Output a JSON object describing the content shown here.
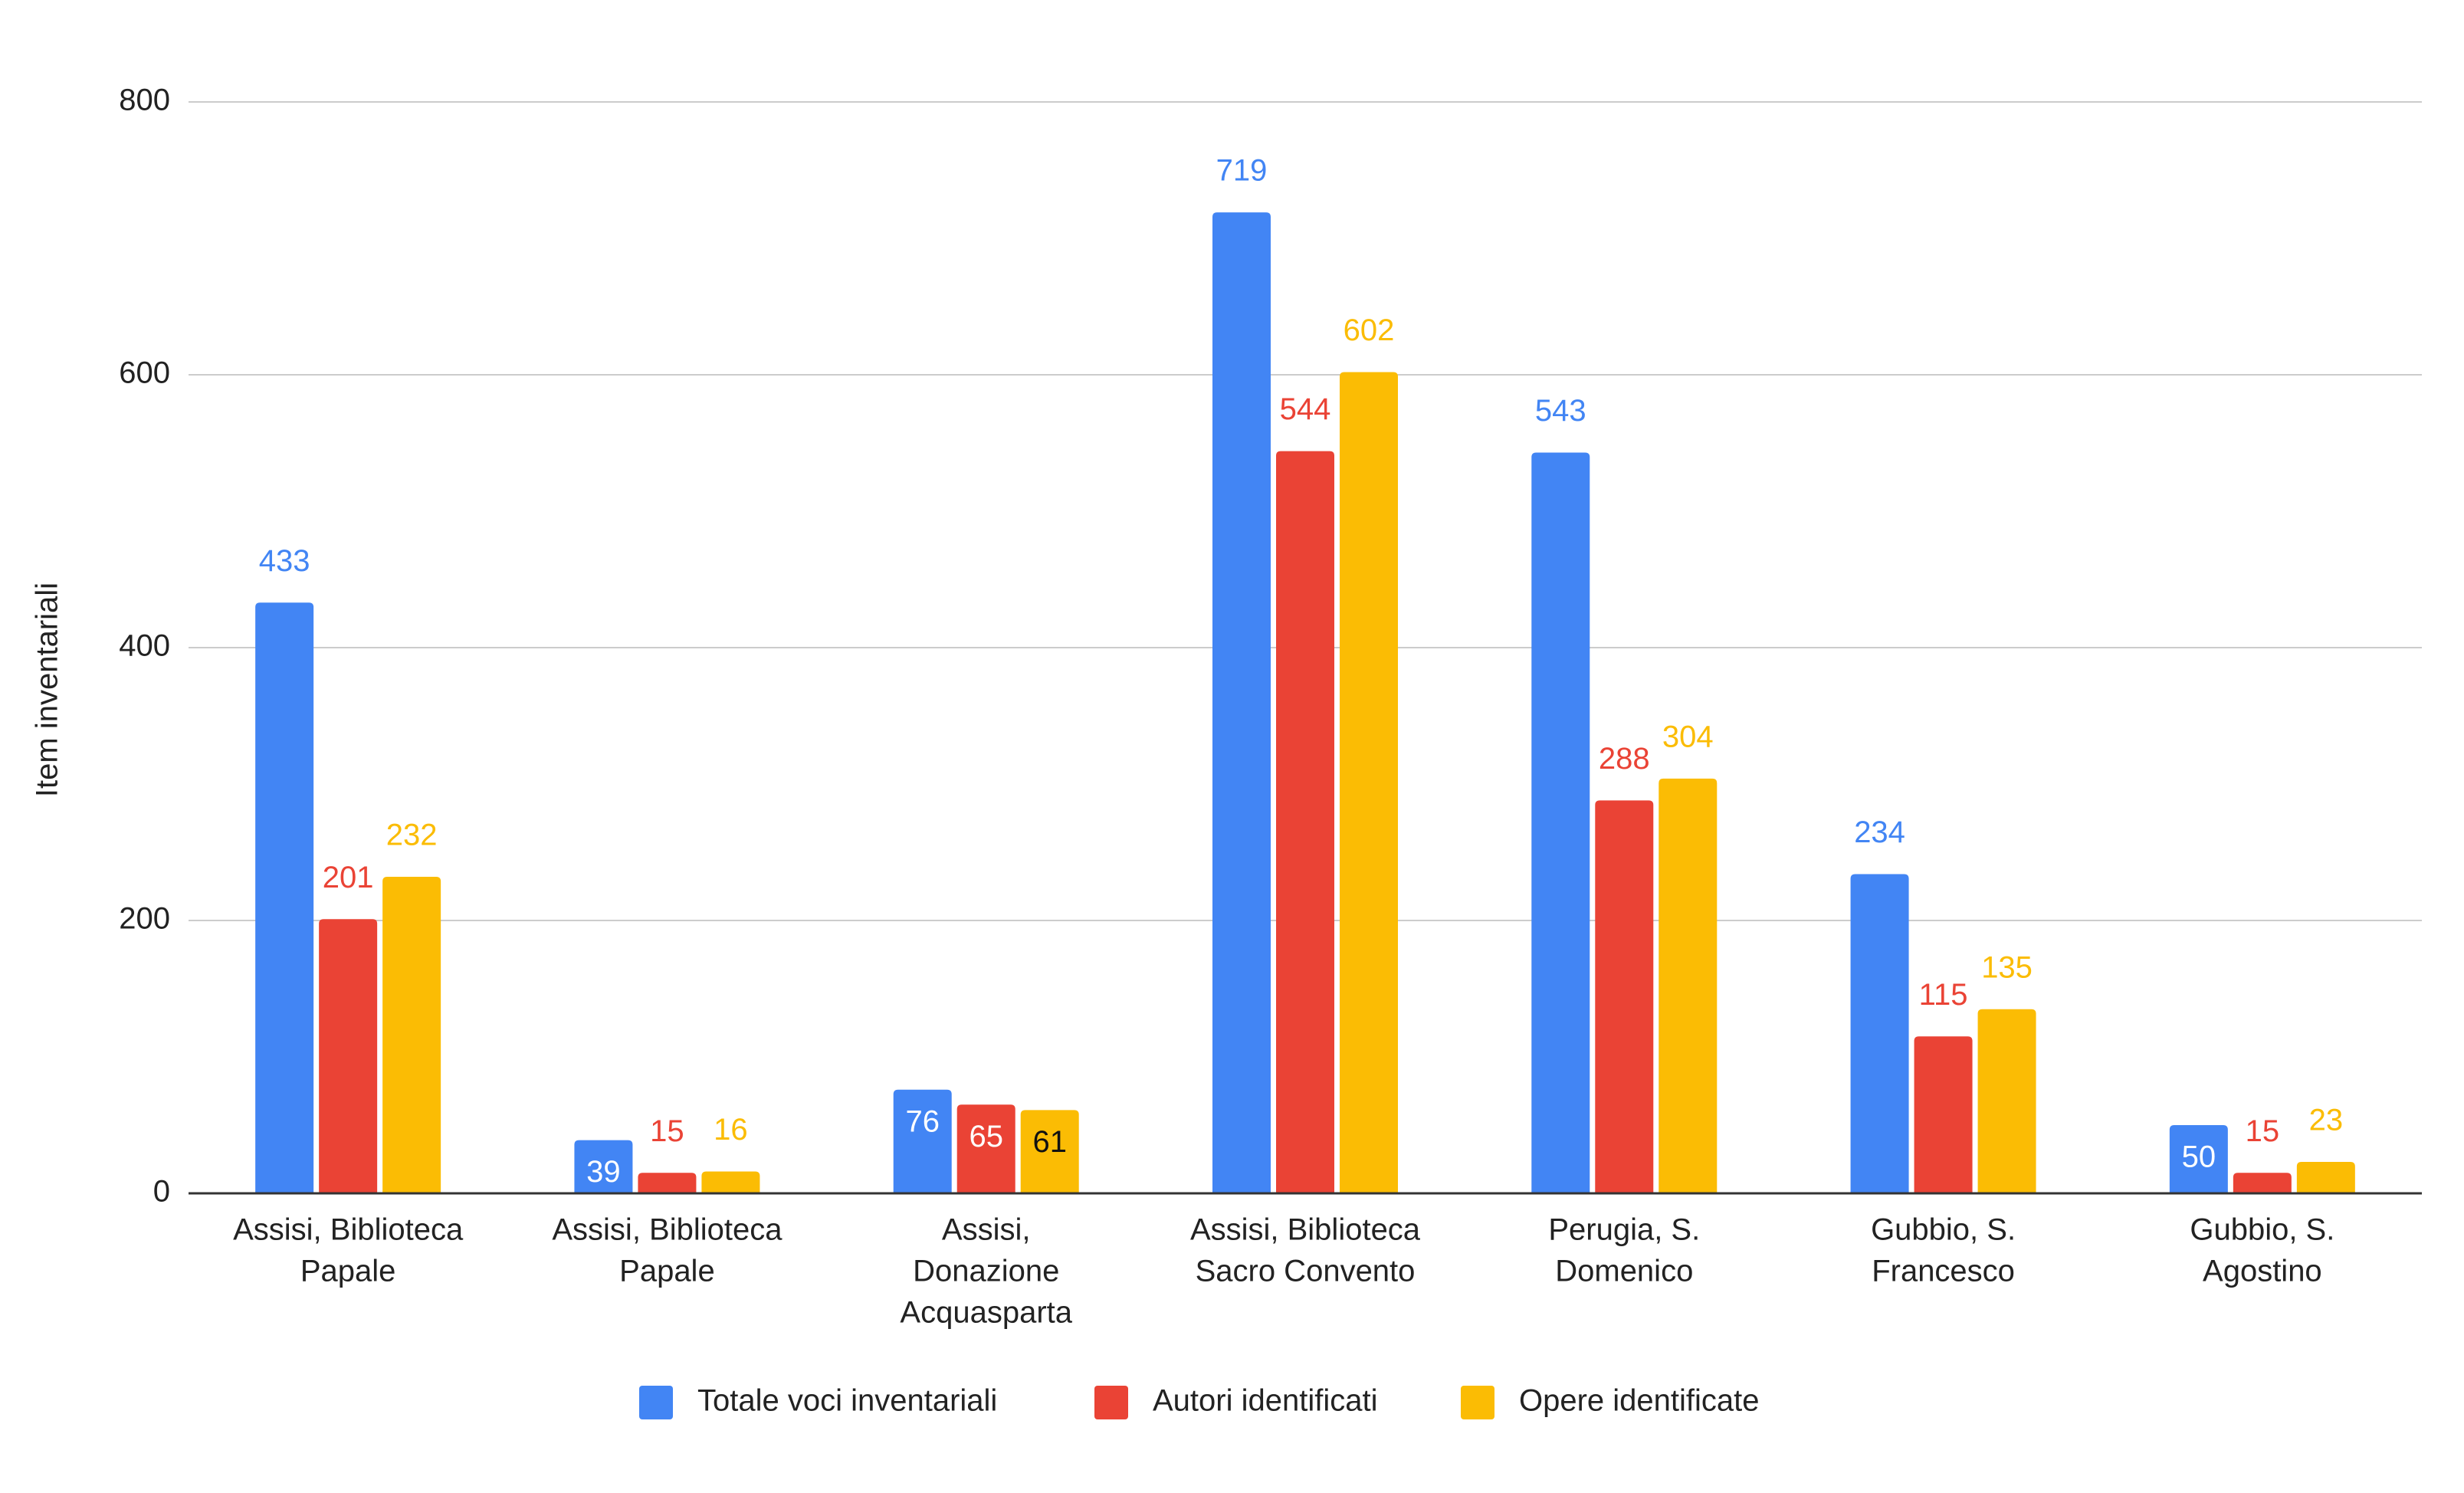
{
  "chart_data": {
    "type": "bar",
    "title": "",
    "xlabel": "",
    "ylabel": "Item inventariali",
    "ylim": [
      0,
      800
    ],
    "yticks": [
      0,
      200,
      400,
      600,
      800
    ],
    "grid": true,
    "legend_position": "bottom",
    "categories": [
      [
        "Assisi, Biblioteca",
        "Papale"
      ],
      [
        "Assisi, Biblioteca",
        "Papale"
      ],
      [
        "Assisi,",
        "Donazione",
        "Acquasparta"
      ],
      [
        "Assisi, Biblioteca",
        "Sacro Convento"
      ],
      [
        "Perugia, S.",
        "Domenico"
      ],
      [
        "Gubbio, S.",
        "Francesco"
      ],
      [
        "Gubbio, S.",
        "Agostino"
      ]
    ],
    "series": [
      {
        "name": "Totale voci inventariali",
        "color": "#4285F4",
        "values": [
          433,
          39,
          76,
          719,
          543,
          234,
          50
        ]
      },
      {
        "name": "Autori identificati",
        "color": "#EA4335",
        "values": [
          201,
          15,
          65,
          544,
          288,
          115,
          15
        ]
      },
      {
        "name": "Opere identificate",
        "color": "#FBBC04",
        "values": [
          232,
          16,
          61,
          602,
          304,
          135,
          23
        ]
      }
    ]
  }
}
